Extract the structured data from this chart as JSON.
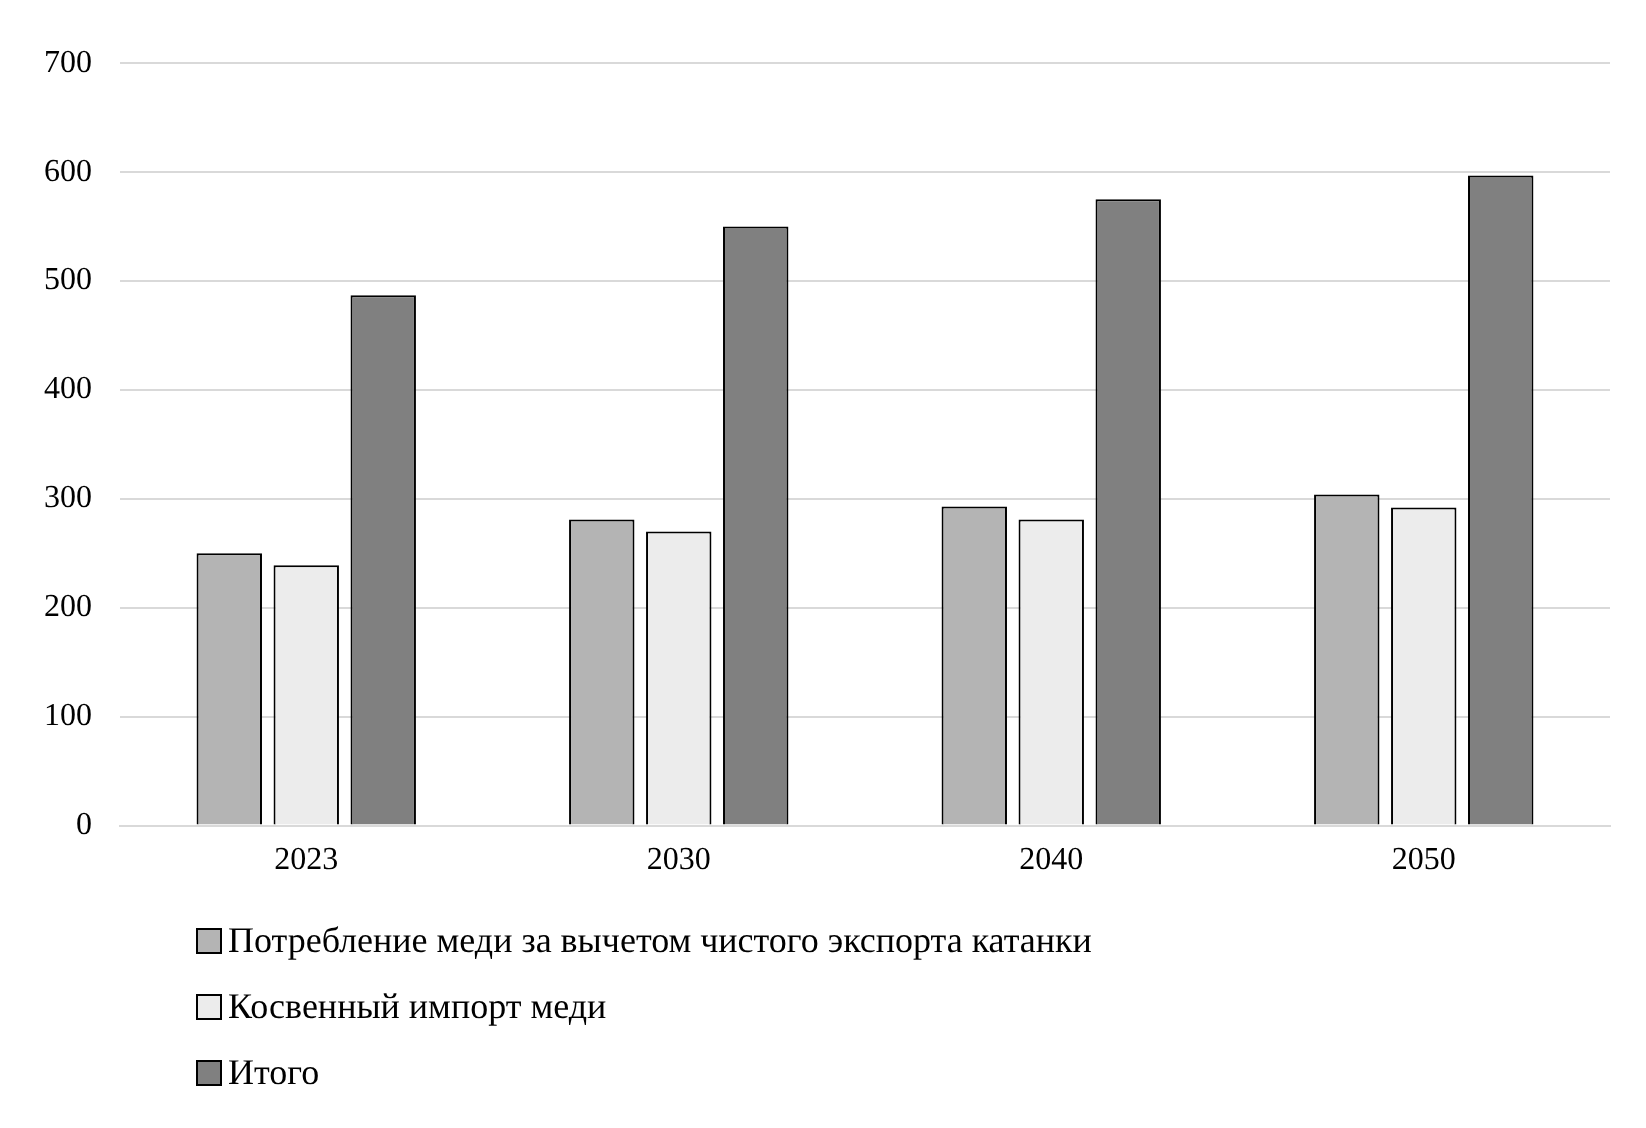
{
  "chart_data": {
    "type": "bar",
    "categories": [
      "2023",
      "2030",
      "2040",
      "2050"
    ],
    "series": [
      {
        "name": "Потребление меди за вычетом чистого экспорта катанки",
        "color": "#b4b4b4",
        "values": [
          250,
          281,
          293,
          304
        ]
      },
      {
        "name": "Косвенный импорт меди",
        "color": "#ececec",
        "values": [
          239,
          270,
          281,
          292
        ]
      },
      {
        "name": "Итого",
        "color": "#808080",
        "values": [
          487,
          550,
          575,
          597
        ]
      }
    ],
    "ylim": [
      0,
      700
    ],
    "yticks": [
      0,
      100,
      200,
      300,
      400,
      500,
      600,
      700
    ],
    "grid": "y",
    "legend": "bottom"
  }
}
